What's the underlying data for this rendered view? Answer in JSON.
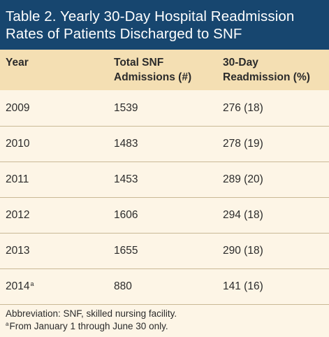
{
  "table": {
    "title_line1": "Table 2. Yearly 30-Day Hospital Readmission",
    "title_line2": "Rates of Patients Discharged to SNF",
    "headers": {
      "year": "Year",
      "admissions_line1": "Total SNF",
      "admissions_line2": "Admissions (#)",
      "readmission_line1": "30-Day",
      "readmission_line2": "Readmission (%)"
    },
    "rows": [
      {
        "year": "2009",
        "year_mark": "",
        "admissions": "1539",
        "readmission": "276 (18)"
      },
      {
        "year": "2010",
        "year_mark": "",
        "admissions": "1483",
        "readmission": "278 (19)"
      },
      {
        "year": "2011",
        "year_mark": "",
        "admissions": "1453",
        "readmission": "289 (20)"
      },
      {
        "year": "2012",
        "year_mark": "",
        "admissions": "1606",
        "readmission": "294 (18)"
      },
      {
        "year": "2013",
        "year_mark": "",
        "admissions": "1655",
        "readmission": "290 (18)"
      },
      {
        "year": "2014",
        "year_mark": "a",
        "admissions": "880",
        "readmission": "141 (16)"
      }
    ],
    "footnotes": {
      "abbreviation": "Abbreviation: SNF, skilled nursing facility.",
      "a_mark": "a",
      "a_text": "From January 1 through June 30 only."
    }
  },
  "colors": {
    "title_background": "#17466f",
    "header_background": "#f4dfb3",
    "body_background": "#fdf5e6",
    "rule": "#c9b996",
    "text": "#2b2b2b"
  }
}
